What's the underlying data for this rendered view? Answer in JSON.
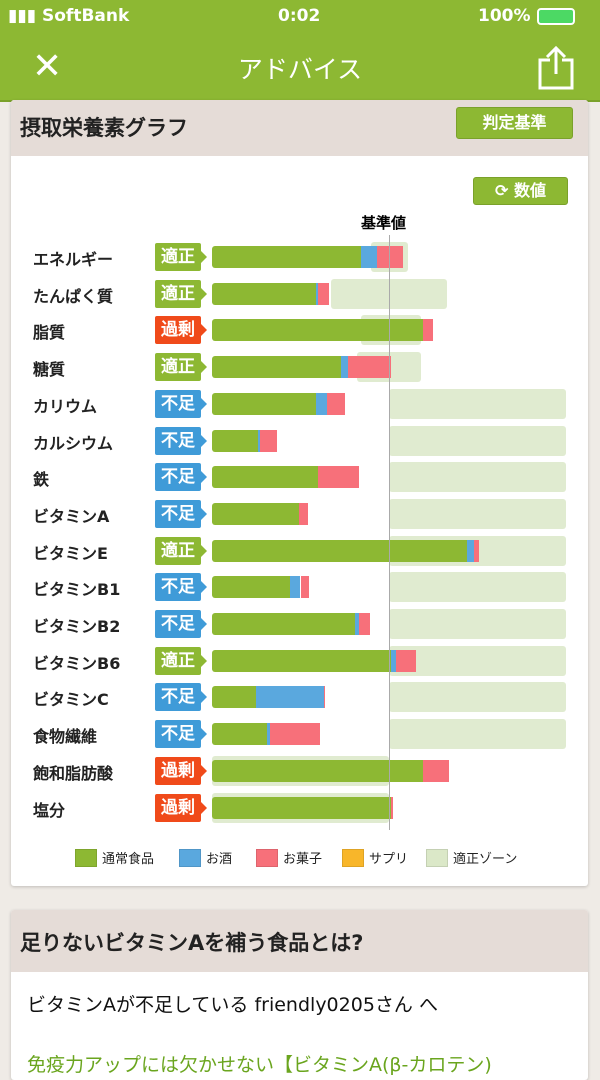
{
  "status": {
    "carrier": "SoftBank",
    "time": "0:02",
    "battery": "100%"
  },
  "nav": {
    "title": "アドバイス",
    "close_icon": "close-icon",
    "share_icon": "share-icon"
  },
  "graph": {
    "title": "摂取栄養素グラフ",
    "criteria_button": "判定基準",
    "toggle_button": "数値",
    "toggle_icon": "refresh-icon"
  },
  "chart_data": {
    "type": "bar",
    "stacked": true,
    "orientation": "horizontal",
    "reference_label": "基準値",
    "unit": "% of reference (estimated)",
    "colors": {
      "通常食品": "#8db833",
      "お酒": "#5aa8de",
      "お菓子": "#f7707a",
      "サプリ": "#f8b62a",
      "適正ゾーン": "#dbe8c8",
      "適正": "#8db833",
      "不足": "#3f9bd8",
      "過剰": "#f04a1a"
    },
    "legend": [
      "通常食品",
      "お酒",
      "お菓子",
      "サプリ",
      "適正ゾーン"
    ],
    "rows": [
      {
        "name": "エネルギー",
        "status": "適正",
        "food": 84,
        "alcohol": 9,
        "snack": 15,
        "zone": [
          90,
          111
        ]
      },
      {
        "name": "たんぱく質",
        "status": "適正",
        "food": 59,
        "alcohol": 1,
        "snack": 6,
        "zone": [
          67,
          133
        ]
      },
      {
        "name": "脂質",
        "status": "過剰",
        "food": 119,
        "alcohol": 0,
        "snack": 6,
        "zone": [
          84,
          118
        ]
      },
      {
        "name": "糖質",
        "status": "適正",
        "food": 73,
        "alcohol": 4,
        "snack": 24,
        "zone": [
          82,
          118
        ]
      },
      {
        "name": "カリウム",
        "status": "不足",
        "food": 59,
        "alcohol": 6,
        "snack": 10,
        "zone": [
          100,
          200
        ]
      },
      {
        "name": "カルシウム",
        "status": "不足",
        "food": 26,
        "alcohol": 1,
        "snack": 10,
        "zone": [
          100,
          200
        ]
      },
      {
        "name": "鉄",
        "status": "不足",
        "food": 60,
        "alcohol": 0,
        "snack": 23,
        "zone": [
          100,
          200
        ]
      },
      {
        "name": "ビタミンA",
        "status": "不足",
        "food": 49,
        "alcohol": 0,
        "snack": 5,
        "zone": [
          100,
          200
        ]
      },
      {
        "name": "ビタミンE",
        "status": "適正",
        "food": 144,
        "alcohol": 4,
        "snack": 3,
        "zone": [
          100,
          200
        ]
      },
      {
        "name": "ビタミンB1",
        "status": "不足",
        "food": 44,
        "alcohol": 6,
        "snack": 5,
        "zone": [
          100,
          200
        ]
      },
      {
        "name": "ビタミンB2",
        "status": "不足",
        "food": 81,
        "alcohol": 2,
        "snack": 6,
        "zone": [
          100,
          200
        ]
      },
      {
        "name": "ビタミンB6",
        "status": "適正",
        "food": 101,
        "alcohol": 3,
        "snack": 11,
        "zone": [
          100,
          200
        ]
      },
      {
        "name": "ビタミンC",
        "status": "不足",
        "food": 25,
        "alcohol": 38,
        "snack": 1,
        "zone": [
          100,
          200
        ]
      },
      {
        "name": "食物繊維",
        "status": "不足",
        "food": 31,
        "alcohol": 2,
        "snack": 28,
        "zone": [
          100,
          200
        ]
      },
      {
        "name": "飽和脂肪酸",
        "status": "過剰",
        "food": 119,
        "alcohol": 0,
        "snack": 15,
        "zone": [
          0,
          100
        ]
      },
      {
        "name": "塩分",
        "status": "過剰",
        "food": 101,
        "alcohol": 0,
        "snack": 1,
        "zone": [
          0,
          100
        ]
      }
    ]
  },
  "advice": {
    "title": "足りないビタミンAを補う食品とは?",
    "greeting": "ビタミンAが不足している friendly0205さん へ",
    "link": "免疫力アップには欠かせない【ビタミンA(β-カロテン)"
  }
}
